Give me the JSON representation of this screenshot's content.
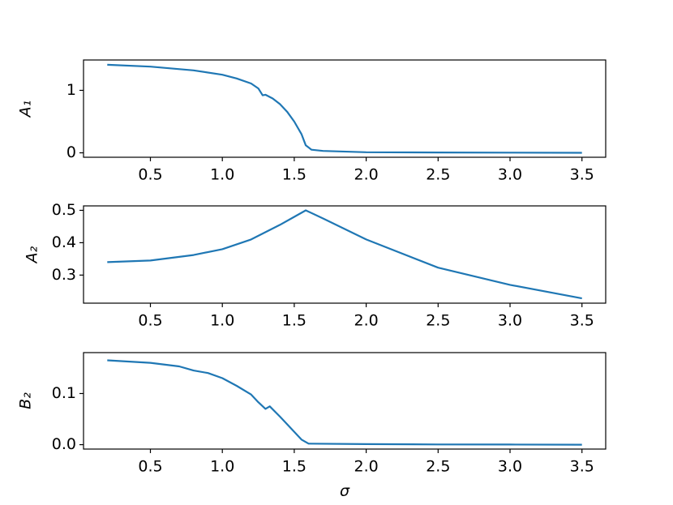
{
  "chart_data": [
    {
      "type": "line",
      "ylabel": "A₁",
      "color": "#1f77b4",
      "x": [
        0.2,
        0.5,
        0.8,
        1.0,
        1.1,
        1.2,
        1.25,
        1.28,
        1.3,
        1.35,
        1.4,
        1.45,
        1.5,
        1.55,
        1.58,
        1.62,
        1.7,
        2.0,
        2.5,
        3.0,
        3.5
      ],
      "values": [
        1.41,
        1.38,
        1.32,
        1.25,
        1.19,
        1.11,
        1.03,
        0.92,
        0.93,
        0.87,
        0.78,
        0.66,
        0.5,
        0.3,
        0.12,
        0.05,
        0.03,
        0.01,
        0.005,
        0.003,
        0.0
      ],
      "xlim": [
        0.035,
        3.665
      ],
      "ylim": [
        -0.071,
        1.486
      ],
      "xticks": [
        0.5,
        {
          "value": 1,
          "label": "1.0"
        },
        1.5,
        {
          "value": 2,
          "label": "2.0"
        },
        2.5,
        {
          "value": 3,
          "label": "3.0"
        },
        3.5
      ],
      "yticks": [
        0,
        1
      ]
    },
    {
      "type": "line",
      "ylabel": "A₂",
      "color": "#1f77b4",
      "x": [
        0.2,
        0.5,
        0.8,
        1.0,
        1.2,
        1.4,
        1.5,
        1.58,
        1.7,
        2.0,
        2.5,
        3.0,
        3.5
      ],
      "values": [
        0.34,
        0.345,
        0.362,
        0.38,
        0.41,
        0.455,
        0.48,
        0.5,
        0.475,
        0.41,
        0.323,
        0.27,
        0.228
      ],
      "xlim": [
        0.035,
        3.665
      ],
      "ylim": [
        0.2133,
        0.5137
      ],
      "xticks": [
        0.5,
        {
          "value": 1,
          "label": "1.0"
        },
        1.5,
        {
          "value": 2,
          "label": "2.0"
        },
        2.5,
        {
          "value": 3,
          "label": "3.0"
        },
        3.5
      ],
      "yticks": [
        0.3,
        0.4,
        0.5
      ]
    },
    {
      "type": "line",
      "ylabel": "B₂",
      "xlabel": "σ",
      "color": "#1f77b4",
      "x": [
        0.2,
        0.5,
        0.7,
        0.8,
        0.9,
        1.0,
        1.1,
        1.2,
        1.25,
        1.3,
        1.33,
        1.4,
        1.45,
        1.5,
        1.55,
        1.6,
        2.0,
        2.5,
        3.0,
        3.5
      ],
      "values": [
        0.165,
        0.16,
        0.153,
        0.145,
        0.14,
        0.13,
        0.115,
        0.098,
        0.083,
        0.07,
        0.075,
        0.055,
        0.04,
        0.025,
        0.01,
        0.002,
        0.001,
        0.0005,
        0.0003,
        0.0
      ],
      "xlim": [
        0.035,
        3.665
      ],
      "ylim": [
        -0.0086,
        0.18
      ],
      "xticks": [
        0.5,
        {
          "value": 1,
          "label": "1.0"
        },
        1.5,
        {
          "value": 2,
          "label": "2.0"
        },
        2.5,
        {
          "value": 3,
          "label": "3.0"
        },
        3.5
      ],
      "yticks": [
        {
          "value": 0,
          "label": "0.0"
        },
        0.1
      ]
    }
  ]
}
